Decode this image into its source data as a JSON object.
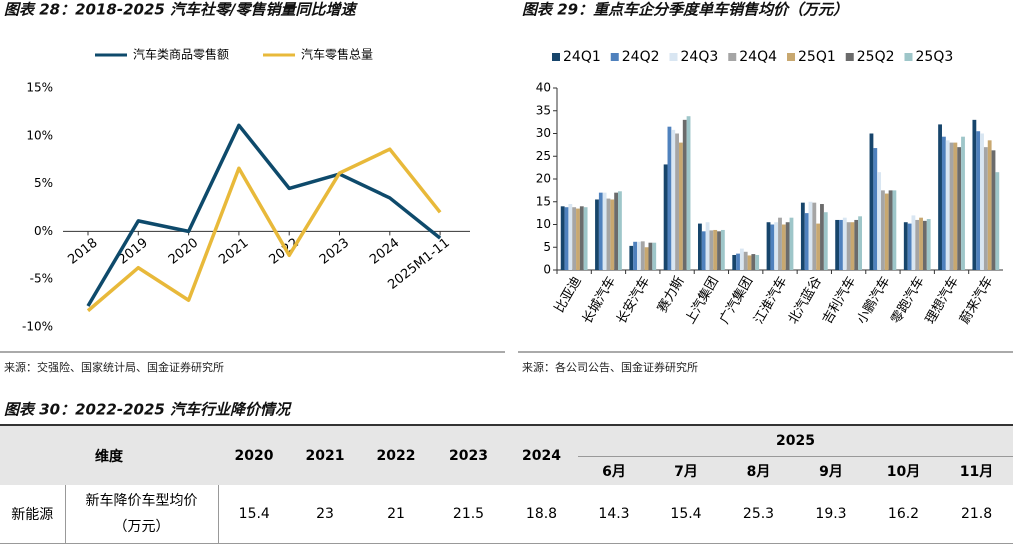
{
  "chart_data": [
    {
      "type": "line",
      "title": "图表 28：2018-2025 汽车社零/零售销量同比增速",
      "categories": [
        "2018",
        "2019",
        "2020",
        "2021",
        "2022",
        "2023",
        "2024",
        "2025M1-11"
      ],
      "series": [
        {
          "name": "汽车类商品零售额",
          "color": "#0e4a6b",
          "values": [
            -7.8,
            1.1,
            0.0,
            11.1,
            4.5,
            6.0,
            3.5,
            -0.7
          ]
        },
        {
          "name": "汽车零售总量",
          "color": "#e8b93a",
          "values": [
            -8.3,
            -3.8,
            -7.2,
            6.6,
            -2.5,
            6.1,
            8.6,
            2.0
          ]
        }
      ],
      "ylim": [
        -10,
        15
      ],
      "yticks": [
        {
          "value": -10,
          "label": "-10%"
        },
        {
          "value": -5,
          "label": "-5%"
        },
        {
          "value": 0,
          "label": "0%"
        },
        {
          "value": 5,
          "label": "5%"
        },
        {
          "value": 10,
          "label": "10%"
        },
        {
          "value": 15,
          "label": "15%"
        }
      ],
      "grid": false,
      "legend": "top",
      "source": "来源：交强险、国家统计局、国金证券研究所"
    },
    {
      "type": "bar",
      "title": "图表 29：重点车企分季度单车销售均价（万元）",
      "categories": [
        "比亚迪",
        "长城汽车",
        "长安汽车",
        "赛力斯",
        "上汽集团",
        "广汽集团",
        "江淮汽车",
        "北汽蓝谷",
        "吉利汽车",
        "小鹏汽车",
        "零跑汽车",
        "理想汽车",
        "蔚来汽车"
      ],
      "series": [
        {
          "name": "24Q1",
          "color": "#17456b",
          "values": [
            14,
            15.5,
            5.3,
            23.2,
            10.2,
            3.3,
            10.5,
            14.8,
            11,
            30,
            10.5,
            32,
            33
          ]
        },
        {
          "name": "24Q2",
          "color": "#4f81bd",
          "values": [
            13.8,
            17,
            6.2,
            31.5,
            8.5,
            3.6,
            10,
            12.5,
            11,
            26.8,
            10.2,
            29.3,
            30.5
          ]
        },
        {
          "name": "24Q3",
          "color": "#d9e6f2",
          "values": [
            14.5,
            17,
            6.2,
            30.8,
            10.5,
            4.7,
            10.5,
            15,
            11.5,
            21.5,
            12,
            28.5,
            30
          ]
        },
        {
          "name": "24Q4",
          "color": "#a5a5a5",
          "values": [
            13.8,
            15.7,
            6.3,
            30,
            8.7,
            4,
            11.5,
            14.8,
            10.5,
            17.5,
            11,
            28,
            27
          ]
        },
        {
          "name": "25Q1",
          "color": "#c8a870",
          "values": [
            13.5,
            15.5,
            5,
            28,
            8.8,
            3.2,
            10,
            10.2,
            10.5,
            16.8,
            11.5,
            28,
            28.5
          ]
        },
        {
          "name": "25Q2",
          "color": "#6b6b6b",
          "values": [
            14,
            17,
            6,
            33,
            8.5,
            3.5,
            10.5,
            14.5,
            11,
            17.5,
            10.8,
            27,
            26.3
          ]
        },
        {
          "name": "25Q3",
          "color": "#9ec6c9",
          "values": [
            13.8,
            17.3,
            6,
            33.8,
            8.8,
            3.3,
            11.5,
            12.7,
            11.8,
            17.5,
            11.2,
            29.3,
            21.5
          ]
        }
      ],
      "ylim": [
        0,
        40
      ],
      "yticks": [
        0,
        5,
        10,
        15,
        20,
        25,
        30,
        35,
        40
      ],
      "grid": false,
      "legend": "top",
      "source": "来源：各公司公告、国金证券研究所"
    }
  ],
  "table": {
    "title": "图表 30：2022-2025 汽车行业降价情况",
    "header": [
      "维度",
      "2020",
      "2021",
      "2022",
      "2023",
      "2024",
      "2025"
    ],
    "subheader": [
      "6月",
      "7月",
      "8月",
      "9月",
      "10月",
      "11月"
    ],
    "rows": [
      [
        "新能源",
        "新车降价车型均价",
        "（万元）",
        "15.4",
        "23",
        "21",
        "21.5",
        "18.8",
        "14.3",
        "15.4",
        "25.3",
        "19.3",
        "16.2",
        "21.8"
      ]
    ]
  }
}
